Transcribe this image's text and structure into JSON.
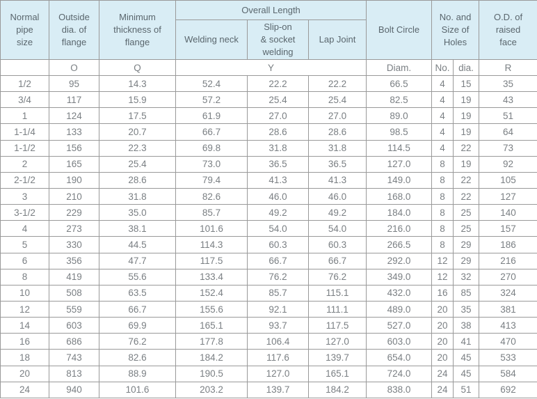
{
  "colors": {
    "header_bg": "#d9edf5",
    "border_color": "#999999",
    "header_text": "#5a666d",
    "body_text": "#7a7f83",
    "page_bg": "#ffffff"
  },
  "table": {
    "header": {
      "normal_pipe_size": "Normal\npipe\nsize",
      "outside_dia_of_flange": "Outside\ndia. of\nflange",
      "minimum_thickness_of_flange": "Minimum\nthickness of\nflange",
      "overall_length": "Overall Length",
      "welding_neck": "Welding neck",
      "slip_on_socket_welding": "Slip-on\n& socket\nwelding",
      "lap_joint": "Lap Joint",
      "bolt_circle": "Bolt Circle",
      "no_and_size_of_holes": "No. and\nSize of\nHoles",
      "od_of_raised_face": "O.D. of\nraised\nface"
    },
    "symbols": {
      "pipe_size": "",
      "outside_dia": "O",
      "thickness": "Q",
      "overall_length": "Y",
      "bolt_circle": "Diam.",
      "holes_no": "No.",
      "holes_dia": "dia.",
      "raised_face": "R"
    },
    "columns": [
      "Normal pipe size",
      "Outside dia. of flange",
      "Minimum thickness of flange",
      "Welding neck",
      "Slip-on & socket welding",
      "Lap Joint",
      "Bolt Circle Diam.",
      "Holes No.",
      "Holes dia.",
      "O.D. of raised face"
    ],
    "rows": [
      [
        "1/2",
        "95",
        "14.3",
        "52.4",
        "22.2",
        "22.2",
        "66.5",
        "4",
        "15",
        "35"
      ],
      [
        "3/4",
        "117",
        "15.9",
        "57.2",
        "25.4",
        "25.4",
        "82.5",
        "4",
        "19",
        "43"
      ],
      [
        "1",
        "124",
        "17.5",
        "61.9",
        "27.0",
        "27.0",
        "89.0",
        "4",
        "19",
        "51"
      ],
      [
        "1-1/4",
        "133",
        "20.7",
        "66.7",
        "28.6",
        "28.6",
        "98.5",
        "4",
        "19",
        "64"
      ],
      [
        "1-1/2",
        "156",
        "22.3",
        "69.8",
        "31.8",
        "31.8",
        "114.5",
        "4",
        "22",
        "73"
      ],
      [
        "2",
        "165",
        "25.4",
        "73.0",
        "36.5",
        "36.5",
        "127.0",
        "8",
        "19",
        "92"
      ],
      [
        "2-1/2",
        "190",
        "28.6",
        "79.4",
        "41.3",
        "41.3",
        "149.0",
        "8",
        "22",
        "105"
      ],
      [
        "3",
        "210",
        "31.8",
        "82.6",
        "46.0",
        "46.0",
        "168.0",
        "8",
        "22",
        "127"
      ],
      [
        "3-1/2",
        "229",
        "35.0",
        "85.7",
        "49.2",
        "49.2",
        "184.0",
        "8",
        "25",
        "140"
      ],
      [
        "4",
        "273",
        "38.1",
        "101.6",
        "54.0",
        "54.0",
        "216.0",
        "8",
        "25",
        "157"
      ],
      [
        "5",
        "330",
        "44.5",
        "114.3",
        "60.3",
        "60.3",
        "266.5",
        "8",
        "29",
        "186"
      ],
      [
        "6",
        "356",
        "47.7",
        "117.5",
        "66.7",
        "66.7",
        "292.0",
        "12",
        "29",
        "216"
      ],
      [
        "8",
        "419",
        "55.6",
        "133.4",
        "76.2",
        "76.2",
        "349.0",
        "12",
        "32",
        "270"
      ],
      [
        "10",
        "508",
        "63.5",
        "152.4",
        "85.7",
        "115.1",
        "432.0",
        "16",
        "85",
        "324"
      ],
      [
        "12",
        "559",
        "66.7",
        "155.6",
        "92.1",
        "111.1",
        "489.0",
        "20",
        "35",
        "381"
      ],
      [
        "14",
        "603",
        "69.9",
        "165.1",
        "93.7",
        "117.5",
        "527.0",
        "20",
        "38",
        "413"
      ],
      [
        "16",
        "686",
        "76.2",
        "177.8",
        "106.4",
        "127.0",
        "603.0",
        "20",
        "41",
        "470"
      ],
      [
        "18",
        "743",
        "82.6",
        "184.2",
        "117.6",
        "139.7",
        "654.0",
        "20",
        "45",
        "533"
      ],
      [
        "20",
        "813",
        "88.9",
        "190.5",
        "127.0",
        "165.1",
        "724.0",
        "24",
        "45",
        "584"
      ],
      [
        "24",
        "940",
        "101.6",
        "203.2",
        "139.7",
        "184.2",
        "838.0",
        "24",
        "51",
        "692"
      ]
    ]
  }
}
